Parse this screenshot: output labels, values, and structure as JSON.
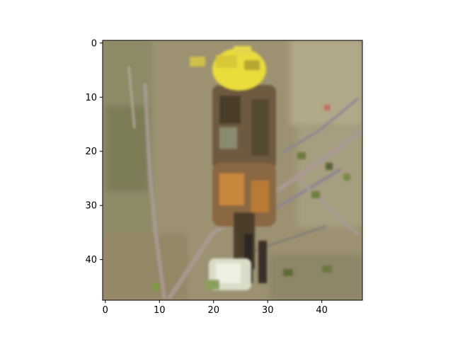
{
  "figure": {
    "background": "#ffffff"
  },
  "chart_data": {
    "type": "heatmap",
    "title": "",
    "xlabel": "",
    "ylabel": "",
    "xlim": [
      -0.5,
      47.5
    ],
    "ylim": [
      47.5,
      -0.5
    ],
    "y_axis_inverted": true,
    "grid": false,
    "legend": "none",
    "x_ticks": [
      0,
      10,
      20,
      30,
      40
    ],
    "y_ticks": [
      0,
      10,
      20,
      30,
      40
    ],
    "x_tick_labels": [
      "0",
      "10",
      "20",
      "30",
      "40"
    ],
    "y_tick_labels": [
      "0",
      "10",
      "20",
      "30",
      "40"
    ],
    "image_shape": [
      48,
      48
    ],
    "image_description": "low-resolution 48x48 pixel image of a small bird with a yellow head perched on a thin bare branch against a blurred olive-brown background",
    "colors": {
      "background_olive": "#9c9272",
      "background_dark": "#7e7a58",
      "head_yellow": "#e9dc3a",
      "body_brown": "#6e5a40",
      "breast_orange": "#c9873c",
      "branch_grey": "#a89a94",
      "flower_white": "#e4e8d6"
    }
  }
}
